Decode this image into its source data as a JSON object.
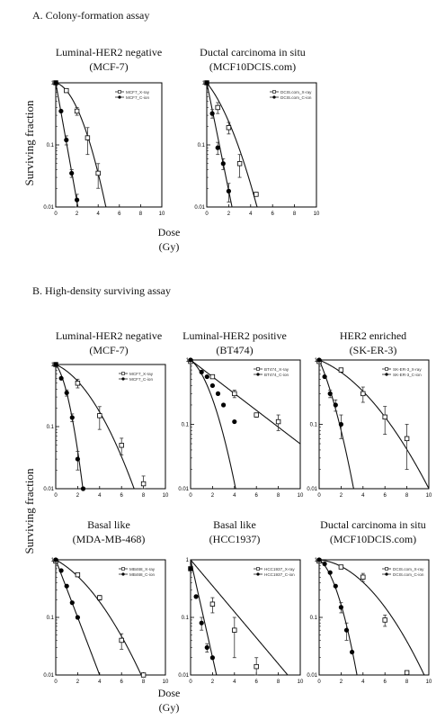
{
  "sections": {
    "a": "A. Colony-formation assay",
    "b": "B. High-density surviving assay"
  },
  "axis": {
    "ylabel": "Surviving fraction",
    "xlabel_a": "Dose",
    "xunit_a": "(Gy)",
    "xlabel_b": "Dose",
    "xunit_b": "(Gy)"
  },
  "chart_data": [
    {
      "type": "scatter",
      "panel": "A1",
      "title": "Luminal-HER2 negative",
      "subtitle": "(MCF-7)",
      "xlim": [
        0,
        10
      ],
      "ylim": [
        0.01,
        1
      ],
      "yscale": "log",
      "xticks": [
        0,
        2,
        4,
        6,
        8,
        10
      ],
      "yticks": [
        0.01,
        0.1,
        1
      ],
      "legend_position": "top-right",
      "series": [
        {
          "name": "MCF7_X-ray",
          "marker": "open-square",
          "x": [
            0,
            1,
            2,
            3,
            4
          ],
          "y": [
            1.0,
            0.75,
            0.35,
            0.13,
            0.035
          ],
          "err": [
            0,
            0.05,
            0.05,
            0.06,
            0.015
          ],
          "fit": {
            "alpha": 0.1,
            "beta": 0.185
          }
        },
        {
          "name": "MCF7_C-ion",
          "marker": "filled-circle",
          "x": [
            0,
            0.5,
            1,
            1.5,
            2
          ],
          "y": [
            1.0,
            0.35,
            0.12,
            0.035,
            0.013
          ],
          "err": [
            0,
            0,
            0.02,
            0.005,
            0.003
          ],
          "fit": {
            "alpha": 2.2,
            "beta": 0
          }
        }
      ]
    },
    {
      "type": "scatter",
      "panel": "A2",
      "title": "Ductal carcinoma in situ",
      "subtitle": "(MCF10DCIS.com)",
      "xlim": [
        0,
        10
      ],
      "ylim": [
        0.01,
        1
      ],
      "yscale": "log",
      "xticks": [
        0,
        2,
        4,
        6,
        8,
        10
      ],
      "yticks": [
        0.01,
        0.1,
        1
      ],
      "legend_position": "top-right",
      "series": [
        {
          "name": "DCIS.com_X-ray",
          "marker": "open-square",
          "x": [
            0,
            1,
            2,
            3,
            4.5
          ],
          "y": [
            1.0,
            0.4,
            0.19,
            0.05,
            0.016
          ],
          "err": [
            0,
            0.08,
            0.04,
            0.02,
            0
          ],
          "fit": {
            "alpha": 0.5,
            "beta": 0.11
          }
        },
        {
          "name": "DCIS.com_C-ion",
          "marker": "filled-circle",
          "x": [
            0,
            0.5,
            1,
            1.5,
            2
          ],
          "y": [
            1.0,
            0.32,
            0.09,
            0.05,
            0.018
          ],
          "err": [
            0,
            0.05,
            0.02,
            0.01,
            0.006
          ],
          "fit": {
            "alpha": 2.0,
            "beta": 0
          }
        }
      ]
    },
    {
      "type": "scatter",
      "panel": "B1",
      "title": "Luminal-HER2 negative",
      "subtitle": "(MCF-7)",
      "xlim": [
        0,
        10
      ],
      "ylim": [
        0.01,
        1
      ],
      "yscale": "log",
      "xticks": [
        0,
        2,
        4,
        6,
        8,
        10
      ],
      "yticks": [
        0.01,
        0.1,
        1
      ],
      "legend_position": "top-right",
      "series": [
        {
          "name": "MCF7_X-ray",
          "marker": "open-square",
          "x": [
            0,
            2,
            4,
            6,
            8
          ],
          "y": [
            1.0,
            0.5,
            0.15,
            0.05,
            0.012
          ],
          "err": [
            0,
            0.08,
            0.06,
            0.015,
            0.004
          ],
          "fit": {
            "alpha": 0.18,
            "beta": 0.065
          }
        },
        {
          "name": "MCF7_C-ion",
          "marker": "filled-circle",
          "x": [
            0,
            0.5,
            1,
            1.5,
            2,
            2.5
          ],
          "y": [
            1.0,
            0.6,
            0.35,
            0.14,
            0.03,
            0.01
          ],
          "err": [
            0,
            0,
            0.04,
            0.02,
            0.01,
            0
          ],
          "fit": {
            "alpha": 0.5,
            "beta": 0.55
          }
        }
      ]
    },
    {
      "type": "scatter",
      "panel": "B2",
      "title": "Luminal-HER2 positive",
      "subtitle": "(BT474)",
      "xlim": [
        0,
        10
      ],
      "ylim": [
        0.01,
        1
      ],
      "yscale": "log",
      "xticks": [
        0,
        2,
        4,
        6,
        8,
        10
      ],
      "yticks": [
        0.01,
        0.1,
        1
      ],
      "legend_position": "top-right",
      "series": [
        {
          "name": "BT474_X-ray",
          "marker": "open-square",
          "x": [
            0,
            2,
            4,
            6,
            8
          ],
          "y": [
            0.95,
            0.55,
            0.3,
            0.14,
            0.11
          ],
          "err": [
            0,
            0,
            0.04,
            0.01,
            0.03
          ],
          "fit": {
            "alpha": 0.3,
            "beta": 0
          }
        },
        {
          "name": "BT474_C-ion",
          "marker": "filled-circle",
          "x": [
            0,
            1,
            1.5,
            2,
            2.5,
            3,
            4
          ],
          "y": [
            1.0,
            0.65,
            0.55,
            0.4,
            0.3,
            0.2,
            0.11
          ],
          "err": [
            0,
            0,
            0,
            0,
            0,
            0,
            0
          ],
          "fit": {
            "alpha": 0.3,
            "beta": 0.2
          }
        }
      ]
    },
    {
      "type": "scatter",
      "panel": "B3",
      "title": "HER2 enriched",
      "subtitle": "(SK-ER-3)",
      "xlim": [
        0,
        10
      ],
      "ylim": [
        0.01,
        1
      ],
      "yscale": "log",
      "xticks": [
        0,
        2,
        4,
        6,
        8,
        10
      ],
      "yticks": [
        0.01,
        0.1,
        1
      ],
      "legend_position": "top-right",
      "series": [
        {
          "name": "SK-ER-3_X-ray",
          "marker": "open-square",
          "x": [
            0,
            2,
            4,
            6,
            8
          ],
          "y": [
            0.95,
            0.7,
            0.3,
            0.13,
            0.06
          ],
          "err": [
            0,
            0.05,
            0.08,
            0.06,
            0.04
          ],
          "fit": {
            "alpha": 0.16,
            "beta": 0.03
          }
        },
        {
          "name": "SK-ER-3_C-ion",
          "marker": "filled-circle",
          "x": [
            0,
            0.5,
            1,
            1.5,
            2
          ],
          "y": [
            1.0,
            0.55,
            0.3,
            0.2,
            0.1
          ],
          "err": [
            0,
            0,
            0.04,
            0.04,
            0.04
          ],
          "fit": {
            "alpha": 0.9,
            "beta": 0.18
          }
        }
      ]
    },
    {
      "type": "scatter",
      "panel": "B4",
      "title": "Basal like",
      "subtitle": "(MDA-MB-468)",
      "xlim": [
        0,
        10
      ],
      "ylim": [
        0.01,
        1
      ],
      "yscale": "log",
      "xticks": [
        0,
        2,
        4,
        6,
        8,
        10
      ],
      "yticks": [
        0.01,
        0.1,
        1
      ],
      "legend_position": "top-right",
      "series": [
        {
          "name": "MB468_X-ray",
          "marker": "open-square",
          "x": [
            0,
            2,
            4,
            6,
            8
          ],
          "y": [
            0.95,
            0.55,
            0.22,
            0.04,
            0.01
          ],
          "err": [
            0,
            0.04,
            0.02,
            0.012,
            0
          ],
          "fit": {
            "alpha": 0.24,
            "beta": 0.045
          }
        },
        {
          "name": "MB468_C-ion",
          "marker": "filled-circle",
          "x": [
            0,
            0.5,
            1,
            1.5,
            2
          ],
          "y": [
            1.0,
            0.65,
            0.35,
            0.18,
            0.1
          ],
          "err": [
            0,
            0,
            0,
            0,
            0
          ],
          "fit": {
            "alpha": 1.15,
            "beta": 0
          }
        }
      ]
    },
    {
      "type": "scatter",
      "panel": "B5",
      "title": "Basal like",
      "subtitle": "(HCC1937)",
      "xlim": [
        0,
        10
      ],
      "ylim": [
        0.01,
        1
      ],
      "yscale": "log",
      "xticks": [
        0,
        2,
        4,
        6,
        8,
        10
      ],
      "yticks": [
        0.01,
        0.1,
        1
      ],
      "legend_position": "top-right",
      "series": [
        {
          "name": "HCC1937_X-ray",
          "marker": "open-square",
          "x": [
            0,
            2,
            4,
            6
          ],
          "y": [
            0.7,
            0.17,
            0.06,
            0.014
          ],
          "err": [
            0,
            0.05,
            0.04,
            0.006
          ],
          "fit": {
            "alpha": 0.52,
            "beta": 0
          }
        },
        {
          "name": "HCC1937_C-ion",
          "marker": "filled-circle",
          "x": [
            0,
            0.5,
            1,
            1.5,
            2
          ],
          "y": [
            0.7,
            0.23,
            0.08,
            0.03,
            0.02
          ],
          "err": [
            0,
            0,
            0.02,
            0.005,
            0
          ],
          "fit": {
            "alpha": 1.95,
            "beta": 0
          }
        }
      ]
    },
    {
      "type": "scatter",
      "panel": "B6",
      "title": "Ductal carcinoma in situ",
      "subtitle": "(MCF10DCIS.com)",
      "xlim": [
        0,
        10
      ],
      "ylim": [
        0.01,
        1
      ],
      "yscale": "log",
      "xticks": [
        0,
        2,
        4,
        6,
        8,
        10
      ],
      "yticks": [
        0.01,
        0.1,
        1
      ],
      "legend_position": "top-right",
      "series": [
        {
          "name": "DCIS.com_X-ray",
          "marker": "open-square",
          "x": [
            0,
            2,
            4,
            6,
            8
          ],
          "y": [
            0.95,
            0.75,
            0.5,
            0.09,
            0.011
          ],
          "err": [
            0,
            0.03,
            0.08,
            0.02,
            0
          ],
          "fit": {
            "alpha": 0.04,
            "beta": 0.046
          }
        },
        {
          "name": "DCIS.com_C-ion",
          "marker": "filled-circle",
          "x": [
            0,
            0.5,
            1,
            1.5,
            2,
            2.5,
            3
          ],
          "y": [
            1.0,
            0.85,
            0.6,
            0.35,
            0.15,
            0.06,
            0.025
          ],
          "err": [
            0,
            0,
            0,
            0,
            0.03,
            0.02,
            0
          ],
          "fit": {
            "alpha": 0.3,
            "beta": 0.3
          }
        }
      ]
    }
  ]
}
